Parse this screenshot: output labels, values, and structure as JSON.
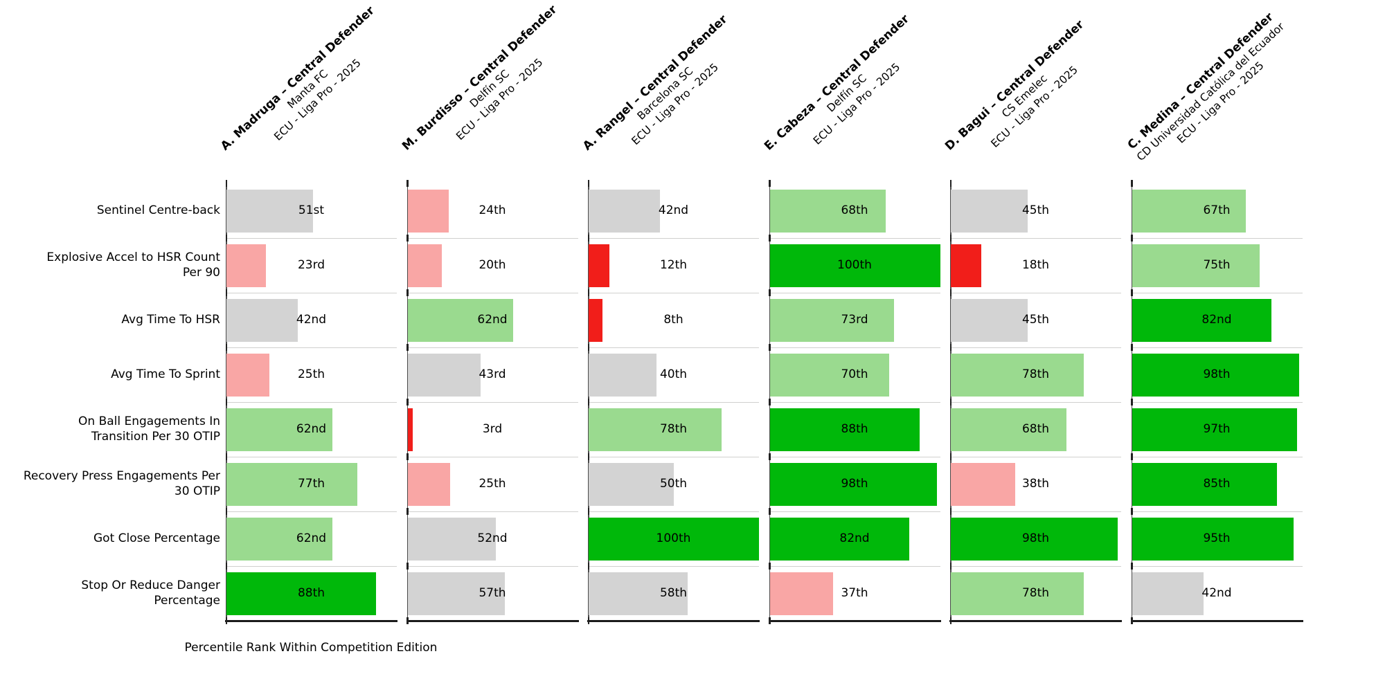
{
  "chart_data": {
    "type": "bar",
    "orientation": "horizontal",
    "title": "",
    "xlabel": "Percentile Rank Within Competition Edition",
    "xlim": [
      0,
      100
    ],
    "grid": false,
    "legend": false,
    "value_format": "ordinal percentile rank",
    "colors": {
      "very_low": "#f11e1a",
      "low": "#f9a6a5",
      "mid": "#d3d3d3",
      "high": "#9ada8f",
      "very_high": "#00b80a"
    },
    "color_thresholds": [
      20,
      40,
      60,
      80
    ],
    "categories": [
      {
        "lines": [
          "Sentinel Centre-back"
        ]
      },
      {
        "lines": [
          "Explosive Accel to HSR Count",
          "Per 90"
        ]
      },
      {
        "lines": [
          "Avg Time To HSR"
        ]
      },
      {
        "lines": [
          "Avg Time To Sprint"
        ]
      },
      {
        "lines": [
          "On Ball Engagements In",
          "Transition Per 30 OTIP"
        ]
      },
      {
        "lines": [
          "Recovery Press Engagements Per",
          "30 OTIP"
        ]
      },
      {
        "lines": [
          "Got Close Percentage"
        ]
      },
      {
        "lines": [
          "Stop Or Reduce Danger",
          "Percentage"
        ]
      }
    ],
    "series": [
      {
        "player": "A. Madruga – Central Defender",
        "team": "Manta FC",
        "competition": "ECU - Liga Pro - 2025",
        "values": [
          51,
          23,
          42,
          25,
          62,
          77,
          62,
          88
        ],
        "value_labels": [
          "51st",
          "23rd",
          "42nd",
          "25th",
          "62nd",
          "77th",
          "62nd",
          "88th"
        ]
      },
      {
        "player": "M. Burdisso – Central Defender",
        "team": "Delfín SC",
        "competition": "ECU - Liga Pro - 2025",
        "values": [
          24,
          20,
          62,
          43,
          3,
          25,
          52,
          57
        ],
        "value_labels": [
          "24th",
          "20th",
          "62nd",
          "43rd",
          "3rd",
          "25th",
          "52nd",
          "57th"
        ]
      },
      {
        "player": "A. Rangel – Central Defender",
        "team": "Barcelona SC",
        "competition": "ECU - Liga Pro - 2025",
        "values": [
          42,
          12,
          8,
          40,
          78,
          50,
          100,
          58
        ],
        "value_labels": [
          "42nd",
          "12th",
          "8th",
          "40th",
          "78th",
          "50th",
          "100th",
          "58th"
        ]
      },
      {
        "player": "E. Cabeza – Central Defender",
        "team": "Delfín SC",
        "competition": "ECU - Liga Pro - 2025",
        "values": [
          68,
          100,
          73,
          70,
          88,
          98,
          82,
          37
        ],
        "value_labels": [
          "68th",
          "100th",
          "73rd",
          "70th",
          "88th",
          "98th",
          "82nd",
          "37th"
        ]
      },
      {
        "player": "D. Bagui – Central Defender",
        "team": "CS Emelec",
        "competition": "ECU - Liga Pro - 2025",
        "values": [
          45,
          18,
          45,
          78,
          68,
          38,
          98,
          78
        ],
        "value_labels": [
          "45th",
          "18th",
          "45th",
          "78th",
          "68th",
          "38th",
          "98th",
          "78th"
        ]
      },
      {
        "player": "C. Medina – Central Defender",
        "team": "CD Universidad Católica del Ecuador",
        "competition": "ECU - Liga Pro - 2025",
        "values": [
          67,
          75,
          82,
          98,
          97,
          85,
          95,
          42
        ],
        "value_labels": [
          "67th",
          "75th",
          "82nd",
          "98th",
          "97th",
          "85th",
          "95th",
          "42nd"
        ]
      }
    ]
  }
}
